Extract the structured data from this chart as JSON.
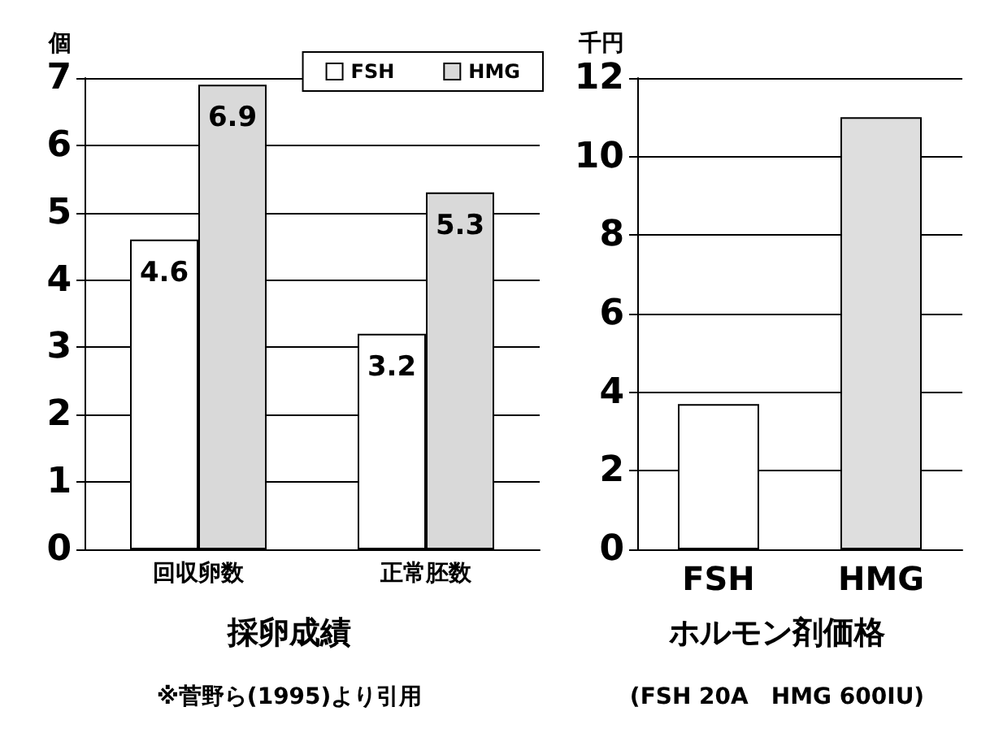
{
  "chart_data": [
    {
      "type": "bar",
      "title": "採卵成績",
      "ylabel": "個",
      "categories": [
        "回収卵数",
        "正常胚数"
      ],
      "series": [
        {
          "name": "FSH",
          "color": "#ffffff",
          "values": [
            4.6,
            3.2
          ]
        },
        {
          "name": "HMG",
          "color": "#d9d9d9",
          "values": [
            6.9,
            5.3
          ]
        }
      ],
      "ylim": [
        0,
        7
      ],
      "yticks": [
        0,
        1,
        2,
        3,
        4,
        5,
        6,
        7
      ],
      "grid": "y",
      "legend": "top right",
      "data_labels": true,
      "annotations": [
        "※菅野ら(1995)より引用"
      ]
    },
    {
      "type": "bar",
      "title": "ホルモン剤価格",
      "ylabel": "千円",
      "categories": [
        "FSH",
        "HMG"
      ],
      "values": [
        3.7,
        11
      ],
      "colors": [
        "#ffffff",
        "#dedede"
      ],
      "ylim": [
        0,
        12
      ],
      "yticks": [
        0,
        2,
        4,
        6,
        8,
        10,
        12
      ],
      "grid": "y",
      "annotations": [
        "(FSH 20A　HMG 600IU)"
      ]
    }
  ]
}
